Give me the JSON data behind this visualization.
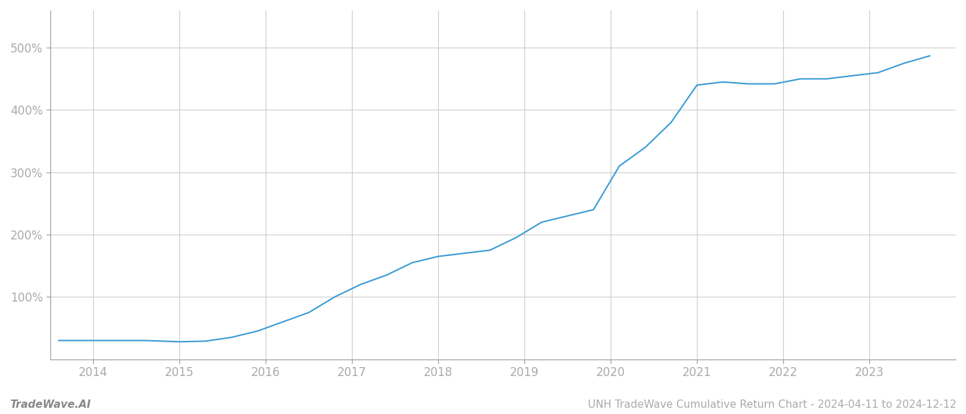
{
  "title": "UNH TradeWave Cumulative Return Chart - 2024-04-11 to 2024-12-12",
  "watermark": "TradeWave.AI",
  "line_color": "#3a9bd5",
  "background_color": "#ffffff",
  "grid_color": "#cccccc",
  "x_values": [
    2013.6,
    2014.0,
    2014.3,
    2014.6,
    2015.0,
    2015.3,
    2015.6,
    2015.9,
    2016.2,
    2016.5,
    2016.8,
    2017.1,
    2017.4,
    2017.7,
    2018.0,
    2018.3,
    2018.6,
    2018.9,
    2019.2,
    2019.5,
    2019.8,
    2020.1,
    2020.4,
    2020.7,
    2021.0,
    2021.3,
    2021.6,
    2021.9,
    2022.2,
    2022.5,
    2022.8,
    2023.1,
    2023.4,
    2023.7
  ],
  "y_values": [
    30,
    30,
    30,
    30,
    28,
    29,
    35,
    45,
    60,
    75,
    100,
    120,
    135,
    155,
    165,
    170,
    175,
    195,
    220,
    230,
    240,
    310,
    340,
    380,
    440,
    445,
    442,
    442,
    450,
    450,
    455,
    460,
    475,
    487
  ],
  "xlim": [
    2013.5,
    2024.0
  ],
  "ylim": [
    0,
    560
  ],
  "yticks": [
    100,
    200,
    300,
    400,
    500
  ],
  "ytick_labels": [
    "100%",
    "200%",
    "300%",
    "400%",
    "500%"
  ],
  "xticks": [
    2014,
    2015,
    2016,
    2017,
    2018,
    2019,
    2020,
    2021,
    2022,
    2023
  ],
  "xtick_labels": [
    "2014",
    "2015",
    "2016",
    "2017",
    "2018",
    "2019",
    "2020",
    "2021",
    "2022",
    "2023"
  ],
  "line_width": 1.5,
  "title_fontsize": 11,
  "tick_fontsize": 12,
  "watermark_fontsize": 11,
  "tick_color": "#aaaaaa",
  "spine_color": "#999999"
}
